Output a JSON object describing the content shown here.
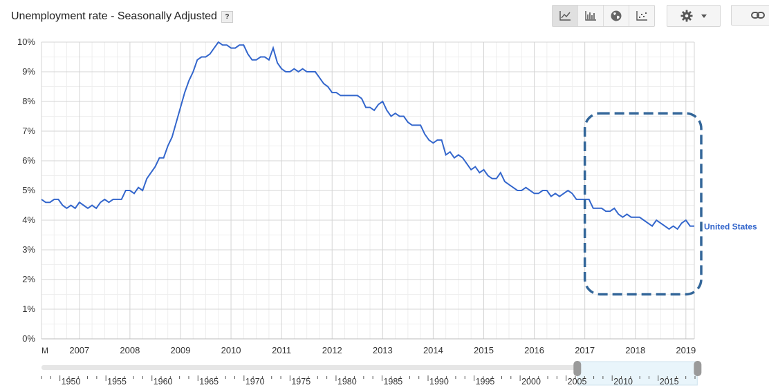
{
  "header": {
    "title": "Unemployment rate - Seasonally Adjusted",
    "help_label": "?"
  },
  "toolbar": {
    "buttons": [
      {
        "icon": "line-chart-icon",
        "active": true
      },
      {
        "icon": "bar-chart-icon",
        "active": false
      },
      {
        "icon": "globe-icon",
        "active": false
      },
      {
        "icon": "scatter-icon",
        "active": false
      }
    ],
    "settings_icon": "gear-icon",
    "link_icon": "link-icon"
  },
  "chart_data": {
    "type": "line",
    "title": "Unemployment rate - Seasonally Adjusted",
    "x_start_label": "M",
    "ylim": [
      0,
      10
    ],
    "yticks": [
      "0%",
      "1%",
      "2%",
      "3%",
      "4%",
      "5%",
      "6%",
      "7%",
      "8%",
      "9%",
      "10%"
    ],
    "xticks": [
      "2007",
      "2008",
      "2009",
      "2010",
      "2011",
      "2012",
      "2013",
      "2014",
      "2015",
      "2016",
      "2017",
      "2018",
      "2019"
    ],
    "x_range": [
      "2006-04",
      "2019-03"
    ],
    "grid": true,
    "series": [
      {
        "name": "United States",
        "color": "#3366cc",
        "x": [
          "2006-04",
          "2006-05",
          "2006-06",
          "2006-07",
          "2006-08",
          "2006-09",
          "2006-10",
          "2006-11",
          "2006-12",
          "2007-01",
          "2007-02",
          "2007-03",
          "2007-04",
          "2007-05",
          "2007-06",
          "2007-07",
          "2007-08",
          "2007-09",
          "2007-10",
          "2007-11",
          "2007-12",
          "2008-01",
          "2008-02",
          "2008-03",
          "2008-04",
          "2008-05",
          "2008-06",
          "2008-07",
          "2008-08",
          "2008-09",
          "2008-10",
          "2008-11",
          "2008-12",
          "2009-01",
          "2009-02",
          "2009-03",
          "2009-04",
          "2009-05",
          "2009-06",
          "2009-07",
          "2009-08",
          "2009-09",
          "2009-10",
          "2009-11",
          "2009-12",
          "2010-01",
          "2010-02",
          "2010-03",
          "2010-04",
          "2010-05",
          "2010-06",
          "2010-07",
          "2010-08",
          "2010-09",
          "2010-10",
          "2010-11",
          "2010-12",
          "2011-01",
          "2011-02",
          "2011-03",
          "2011-04",
          "2011-05",
          "2011-06",
          "2011-07",
          "2011-08",
          "2011-09",
          "2011-10",
          "2011-11",
          "2011-12",
          "2012-01",
          "2012-02",
          "2012-03",
          "2012-04",
          "2012-05",
          "2012-06",
          "2012-07",
          "2012-08",
          "2012-09",
          "2012-10",
          "2012-11",
          "2012-12",
          "2013-01",
          "2013-02",
          "2013-03",
          "2013-04",
          "2013-05",
          "2013-06",
          "2013-07",
          "2013-08",
          "2013-09",
          "2013-10",
          "2013-11",
          "2013-12",
          "2014-01",
          "2014-02",
          "2014-03",
          "2014-04",
          "2014-05",
          "2014-06",
          "2014-07",
          "2014-08",
          "2014-09",
          "2014-10",
          "2014-11",
          "2014-12",
          "2015-01",
          "2015-02",
          "2015-03",
          "2015-04",
          "2015-05",
          "2015-06",
          "2015-07",
          "2015-08",
          "2015-09",
          "2015-10",
          "2015-11",
          "2015-12",
          "2016-01",
          "2016-02",
          "2016-03",
          "2016-04",
          "2016-05",
          "2016-06",
          "2016-07",
          "2016-08",
          "2016-09",
          "2016-10",
          "2016-11",
          "2016-12",
          "2017-01",
          "2017-02",
          "2017-03",
          "2017-04",
          "2017-05",
          "2017-06",
          "2017-07",
          "2017-08",
          "2017-09",
          "2017-10",
          "2017-11",
          "2017-12",
          "2018-01",
          "2018-02",
          "2018-03",
          "2018-04",
          "2018-05",
          "2018-06",
          "2018-07",
          "2018-08",
          "2018-09",
          "2018-10",
          "2018-11",
          "2018-12",
          "2019-01",
          "2019-02",
          "2019-03"
        ],
        "values": [
          4.7,
          4.6,
          4.6,
          4.7,
          4.7,
          4.5,
          4.4,
          4.5,
          4.4,
          4.6,
          4.5,
          4.4,
          4.5,
          4.4,
          4.6,
          4.7,
          4.6,
          4.7,
          4.7,
          4.7,
          5.0,
          5.0,
          4.9,
          5.1,
          5.0,
          5.4,
          5.6,
          5.8,
          6.1,
          6.1,
          6.5,
          6.8,
          7.3,
          7.8,
          8.3,
          8.7,
          9.0,
          9.4,
          9.5,
          9.5,
          9.6,
          9.8,
          10.0,
          9.9,
          9.9,
          9.8,
          9.8,
          9.9,
          9.9,
          9.6,
          9.4,
          9.4,
          9.5,
          9.5,
          9.4,
          9.8,
          9.3,
          9.1,
          9.0,
          9.0,
          9.1,
          9.0,
          9.1,
          9.0,
          9.0,
          9.0,
          8.8,
          8.6,
          8.5,
          8.3,
          8.3,
          8.2,
          8.2,
          8.2,
          8.2,
          8.2,
          8.1,
          7.8,
          7.8,
          7.7,
          7.9,
          8.0,
          7.7,
          7.5,
          7.6,
          7.5,
          7.5,
          7.3,
          7.2,
          7.2,
          7.2,
          6.9,
          6.7,
          6.6,
          6.7,
          6.7,
          6.2,
          6.3,
          6.1,
          6.2,
          6.1,
          5.9,
          5.7,
          5.8,
          5.6,
          5.7,
          5.5,
          5.4,
          5.4,
          5.6,
          5.3,
          5.2,
          5.1,
          5.0,
          5.0,
          5.1,
          5.0,
          4.9,
          4.9,
          5.0,
          5.0,
          4.8,
          4.9,
          4.8,
          4.9,
          5.0,
          4.9,
          4.7,
          4.7,
          4.7,
          4.7,
          4.4,
          4.4,
          4.4,
          4.3,
          4.3,
          4.4,
          4.2,
          4.1,
          4.2,
          4.1,
          4.1,
          4.1,
          4.0,
          3.9,
          3.8,
          4.0,
          3.9,
          3.8,
          3.7,
          3.8,
          3.7,
          3.9,
          4.0,
          3.8,
          3.8
        ]
      }
    ],
    "annotations": [
      {
        "type": "dashed-rounded-box",
        "color": "#336699",
        "x_from": "2017-01",
        "x_to": "2019-03",
        "y_from": 1.5,
        "y_to": 7.6
      }
    ]
  },
  "range_slider": {
    "labels": [
      "1950",
      "1955",
      "1960",
      "1965",
      "1970",
      "1975",
      "1980",
      "1985",
      "1990",
      "1995",
      "2000",
      "2005",
      "2010",
      "2015"
    ],
    "full_range": [
      1948,
      2019
    ],
    "selected_range": [
      2006.25,
      2019.25
    ]
  }
}
